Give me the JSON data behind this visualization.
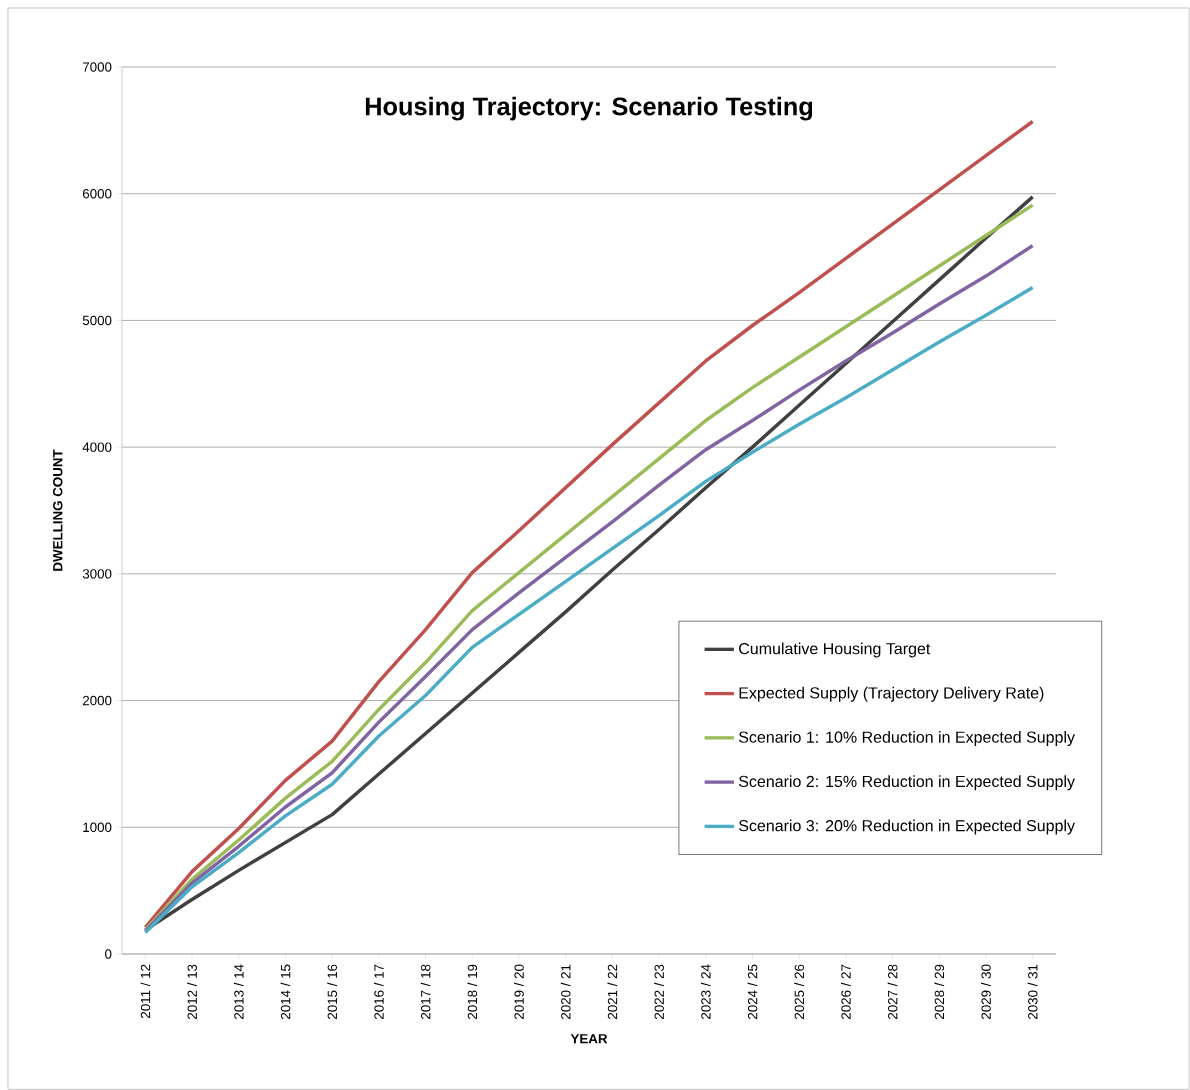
{
  "chart_data": {
    "type": "line",
    "title": "Housing Trajectory: Scenario Testing",
    "xlabel": "YEAR",
    "ylabel": "DWELLING COUNT",
    "categories": [
      "2011 / 12",
      "2012 / 13",
      "2013 / 14",
      "2014 / 15",
      "2015 / 16",
      "2016 / 17",
      "2017 / 18",
      "2018 / 19",
      "2019 / 20",
      "2020 / 21",
      "2021 / 22",
      "2022 / 23",
      "2023 / 24",
      "2024 / 25",
      "2025 / 26",
      "2026 / 27",
      "2027 / 28",
      "2028 / 29",
      "2029 / 30",
      "2030 / 31"
    ],
    "series": [
      {
        "name": "Cumulative Housing Target",
        "color": "#404040",
        "values": [
          190,
          430,
          660,
          880,
          1100,
          1420,
          1740,
          2060,
          2380,
          2700,
          3030,
          3350,
          3680,
          4000,
          4330,
          4660,
          4990,
          5320,
          5650,
          5975
        ]
      },
      {
        "name": "Expected Supply (Trajectory Delivery Rate)",
        "color": "#c0504d",
        "values": [
          210,
          650,
          990,
          1370,
          1680,
          2150,
          2560,
          3010,
          3340,
          3680,
          4020,
          4350,
          4680,
          4960,
          5220,
          5490,
          5760,
          6030,
          6300,
          6570
        ]
      },
      {
        "name": "Scenario 1: 10% Reduction in Expected Supply",
        "color": "#9bbb59",
        "values": [
          190,
          590,
          900,
          1230,
          1520,
          1930,
          2300,
          2710,
          3010,
          3310,
          3610,
          3910,
          4210,
          4470,
          4710,
          4950,
          5190,
          5430,
          5670,
          5910
        ]
      },
      {
        "name": "Scenario 2: 15% Reduction in Expected Supply",
        "color": "#8064a2",
        "values": [
          180,
          560,
          850,
          1160,
          1430,
          1830,
          2190,
          2560,
          2850,
          3130,
          3410,
          3700,
          3980,
          4210,
          4450,
          4680,
          4900,
          5130,
          5350,
          5590
        ]
      },
      {
        "name": "Scenario 3: 20% Reduction in Expected Supply",
        "color": "#4bacc6",
        "values": [
          170,
          530,
          800,
          1090,
          1340,
          1720,
          2040,
          2420,
          2680,
          2940,
          3200,
          3460,
          3730,
          3960,
          4180,
          4390,
          4610,
          4830,
          5040,
          5260
        ]
      }
    ],
    "ylim": [
      0,
      7000
    ],
    "yticks": [
      0,
      1000,
      2000,
      3000,
      4000,
      5000,
      6000,
      7000
    ],
    "grid": "y",
    "legend": "bottom right",
    "marker": "none",
    "line_style": "solid"
  }
}
